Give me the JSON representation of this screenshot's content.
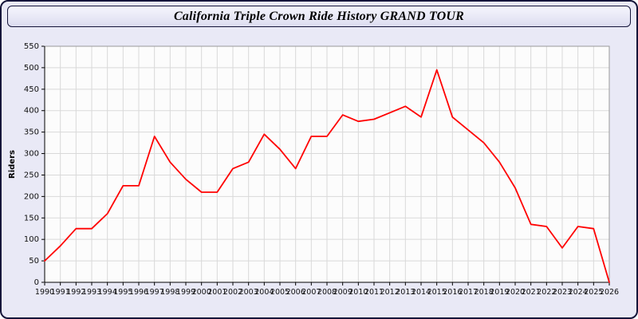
{
  "title": "California Triple Crown Ride History GRAND TOUR",
  "chart_data": {
    "type": "line",
    "title": "California Triple Crown Ride History GRAND TOUR",
    "xlabel": "",
    "ylabel": "Riders",
    "ylim": [
      0,
      550
    ],
    "ytick_step": 50,
    "grid": true,
    "legend": "none",
    "line_color": "#ff0000",
    "grid_color": "#d9d9d9",
    "plot_bg": "#fcfcfc",
    "page_bg": "#e9e9f6",
    "categories": [
      "1990",
      "1991",
      "1992",
      "1993",
      "1994",
      "1995",
      "1996",
      "1997",
      "1998",
      "1999",
      "2000",
      "2001",
      "2002",
      "2003",
      "2004",
      "2005",
      "2006",
      "2007",
      "2008",
      "2009",
      "2010",
      "2011",
      "2012",
      "2013",
      "2014",
      "2015",
      "2016",
      "2017",
      "2018",
      "2019",
      "2020",
      "2021",
      "2022",
      "2023",
      "2024",
      "2025",
      "2026"
    ],
    "values": [
      50,
      85,
      125,
      125,
      160,
      225,
      225,
      340,
      280,
      240,
      210,
      210,
      265,
      280,
      345,
      310,
      265,
      340,
      340,
      390,
      375,
      380,
      395,
      410,
      385,
      495,
      385,
      355,
      325,
      280,
      220,
      135,
      130,
      80,
      130,
      125,
      0
    ]
  }
}
